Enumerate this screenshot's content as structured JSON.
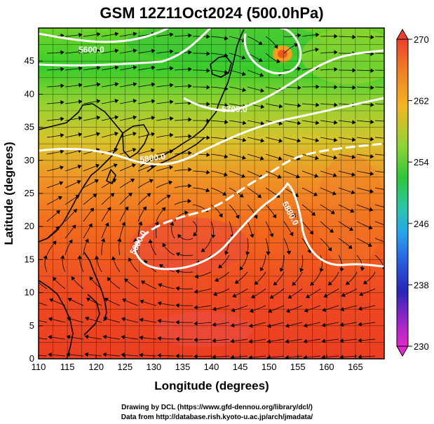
{
  "figure": {
    "title": "GSM 12Z11Oct2024 (500.0hPa)",
    "xlabel": "Longitude (degrees)",
    "ylabel": "Latitude  (degrees)",
    "xlim": [
      110,
      170
    ],
    "ylim": [
      0,
      50
    ],
    "x_ticks": [
      "110",
      "115",
      "120",
      "125",
      "130",
      "135",
      "140",
      "145",
      "150",
      "155",
      "160",
      "165"
    ],
    "y_ticks": [
      "0",
      "5",
      "10",
      "15",
      "20",
      "25",
      "30",
      "35",
      "40",
      "45"
    ]
  },
  "colorbar": {
    "range": [
      230,
      270
    ],
    "tick_labels": [
      "270",
      "262",
      "254",
      "246",
      "238",
      "230"
    ]
  },
  "contours": [
    {
      "label": "5600.0"
    },
    {
      "label": "5700.0"
    },
    {
      "label": "5800.0"
    },
    {
      "label": "5880.0"
    },
    {
      "label": "5880.0"
    }
  ],
  "credits": {
    "line1": "Drawing by DCL (https://www.gfd-dennou.org/library/dcl/)",
    "line2": "Data from http://database.rish.kyoto-u.ac.jp/arch/jmadata/"
  },
  "colors": {
    "frame": "#000000",
    "contour": "#ffffff",
    "coast": "#000000"
  }
}
